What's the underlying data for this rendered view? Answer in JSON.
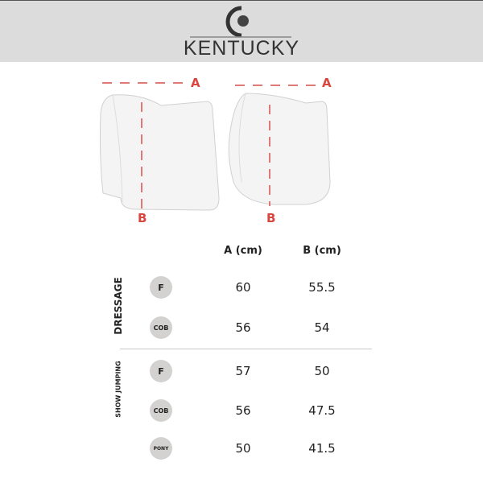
{
  "brand": {
    "name": "KENTUCKY"
  },
  "diagram": {
    "dimension_a_label": "A",
    "dimension_b_label": "B",
    "dashed_color": "#d9463f"
  },
  "table": {
    "headers": [
      "A (cm)",
      "B (cm)"
    ],
    "groups": [
      {
        "name": "DRESSAGE",
        "rows": [
          {
            "size": "F",
            "a": "60",
            "b": "55.5"
          },
          {
            "size": "COB",
            "a": "56",
            "b": "54"
          }
        ]
      },
      {
        "name": "SHOW JUMPING",
        "rows": [
          {
            "size": "F",
            "a": "57",
            "b": "50"
          },
          {
            "size": "COB",
            "a": "56",
            "b": "47.5"
          },
          {
            "size": "PONY",
            "a": "50",
            "b": "41.5"
          }
        ]
      }
    ]
  }
}
